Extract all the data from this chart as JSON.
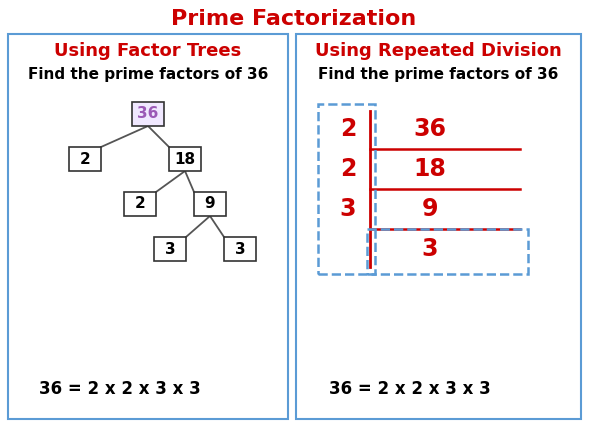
{
  "title": "Prime Factorization",
  "title_color": "#cc0000",
  "title_fontsize": 16,
  "left_heading": "Using Factor Trees",
  "right_heading": "Using Repeated Division",
  "heading_color": "#cc0000",
  "heading_fontsize": 13,
  "subheading": "Find the prime factors of 36",
  "subheading_color": "#000000",
  "subheading_fontsize": 11,
  "formula": "36 = 2 x 2 x 3 x 3",
  "formula_fontsize": 12,
  "box_border_color": "#5b9bd5",
  "background_color": "#ffffff",
  "tree_root_color": "#9b59b6",
  "tree_root_bg": "#f0e8ff",
  "division_color": "#cc0000",
  "dashed_box_color": "#5b9bd5"
}
